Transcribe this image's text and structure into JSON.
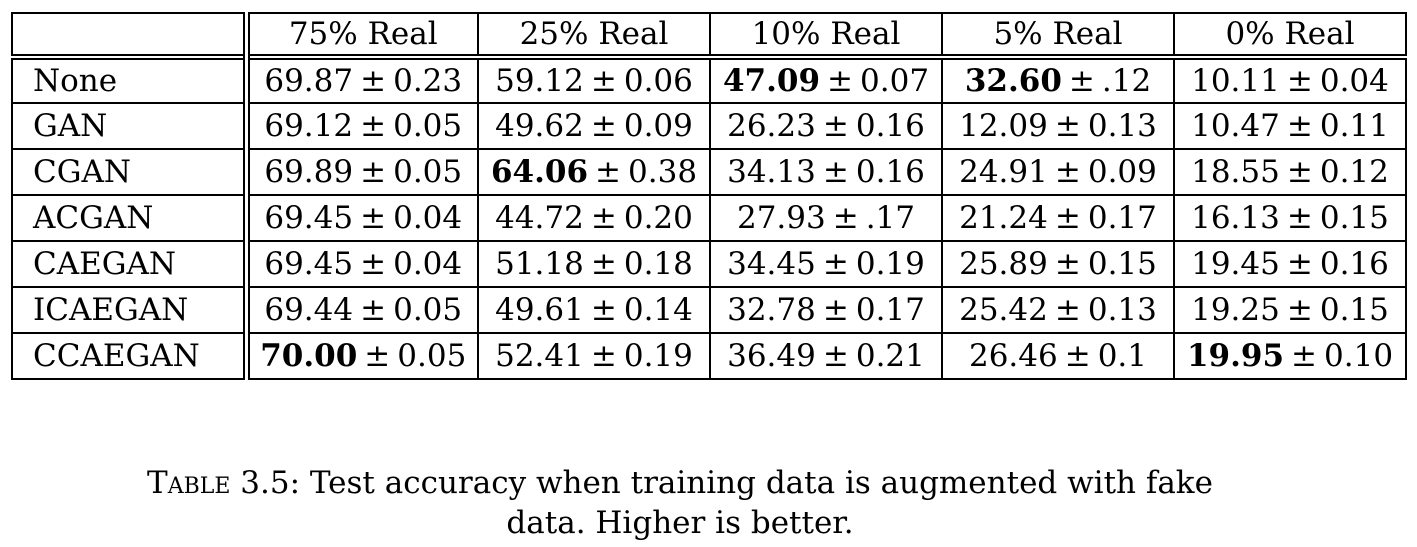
{
  "table": {
    "columns": [
      "75% Real",
      "25% Real",
      "10% Real",
      "5% Real",
      "0% Real"
    ],
    "pm_symbol": "±",
    "rows": [
      {
        "method": "None",
        "cells": [
          {
            "mean": "69.87",
            "std": "0.23",
            "bold": false
          },
          {
            "mean": "59.12",
            "std": "0.06",
            "bold": false
          },
          {
            "mean": "47.09",
            "std": "0.07",
            "bold": true
          },
          {
            "mean": "32.60",
            "std": ".12",
            "bold": true
          },
          {
            "mean": "10.11",
            "std": "0.04",
            "bold": false
          }
        ]
      },
      {
        "method": "GAN",
        "cells": [
          {
            "mean": "69.12",
            "std": "0.05",
            "bold": false
          },
          {
            "mean": "49.62",
            "std": "0.09",
            "bold": false
          },
          {
            "mean": "26.23",
            "std": "0.16",
            "bold": false
          },
          {
            "mean": "12.09",
            "std": "0.13",
            "bold": false
          },
          {
            "mean": "10.47",
            "std": "0.11",
            "bold": false
          }
        ]
      },
      {
        "method": "CGAN",
        "cells": [
          {
            "mean": "69.89",
            "std": "0.05",
            "bold": false
          },
          {
            "mean": "64.06",
            "std": "0.38",
            "bold": true
          },
          {
            "mean": "34.13",
            "std": "0.16",
            "bold": false
          },
          {
            "mean": "24.91",
            "std": "0.09",
            "bold": false
          },
          {
            "mean": "18.55",
            "std": "0.12",
            "bold": false
          }
        ]
      },
      {
        "method": "ACGAN",
        "cells": [
          {
            "mean": "69.45",
            "std": "0.04",
            "bold": false
          },
          {
            "mean": "44.72",
            "std": "0.20",
            "bold": false
          },
          {
            "mean": "27.93",
            "std": ".17",
            "bold": false
          },
          {
            "mean": "21.24",
            "std": "0.17",
            "bold": false
          },
          {
            "mean": "16.13",
            "std": "0.15",
            "bold": false
          }
        ]
      },
      {
        "method": "CAEGAN",
        "cells": [
          {
            "mean": "69.45",
            "std": "0.04",
            "bold": false
          },
          {
            "mean": "51.18",
            "std": "0.18",
            "bold": false
          },
          {
            "mean": "34.45",
            "std": "0.19",
            "bold": false
          },
          {
            "mean": "25.89",
            "std": "0.15",
            "bold": false
          },
          {
            "mean": "19.45",
            "std": "0.16",
            "bold": false
          }
        ]
      },
      {
        "method": "ICAEGAN",
        "cells": [
          {
            "mean": "69.44",
            "std": "0.05",
            "bold": false
          },
          {
            "mean": "49.61",
            "std": "0.14",
            "bold": false
          },
          {
            "mean": "32.78",
            "std": "0.17",
            "bold": false
          },
          {
            "mean": "25.42",
            "std": "0.13",
            "bold": false
          },
          {
            "mean": "19.25",
            "std": "0.15",
            "bold": false
          }
        ]
      },
      {
        "method": "CCAEGAN",
        "cells": [
          {
            "mean": "70.00",
            "std": "0.05",
            "bold": true
          },
          {
            "mean": "52.41",
            "std": "0.19",
            "bold": false
          },
          {
            "mean": "36.49",
            "std": "0.21",
            "bold": false
          },
          {
            "mean": "26.46",
            "std": "0.1",
            "bold": false
          },
          {
            "mean": "19.95",
            "std": "0.10",
            "bold": true
          }
        ]
      }
    ]
  },
  "caption": {
    "label": "Table 3.5:",
    "line1": "Test accuracy when training data is augmented with fake",
    "line2": "data. Higher is better."
  }
}
